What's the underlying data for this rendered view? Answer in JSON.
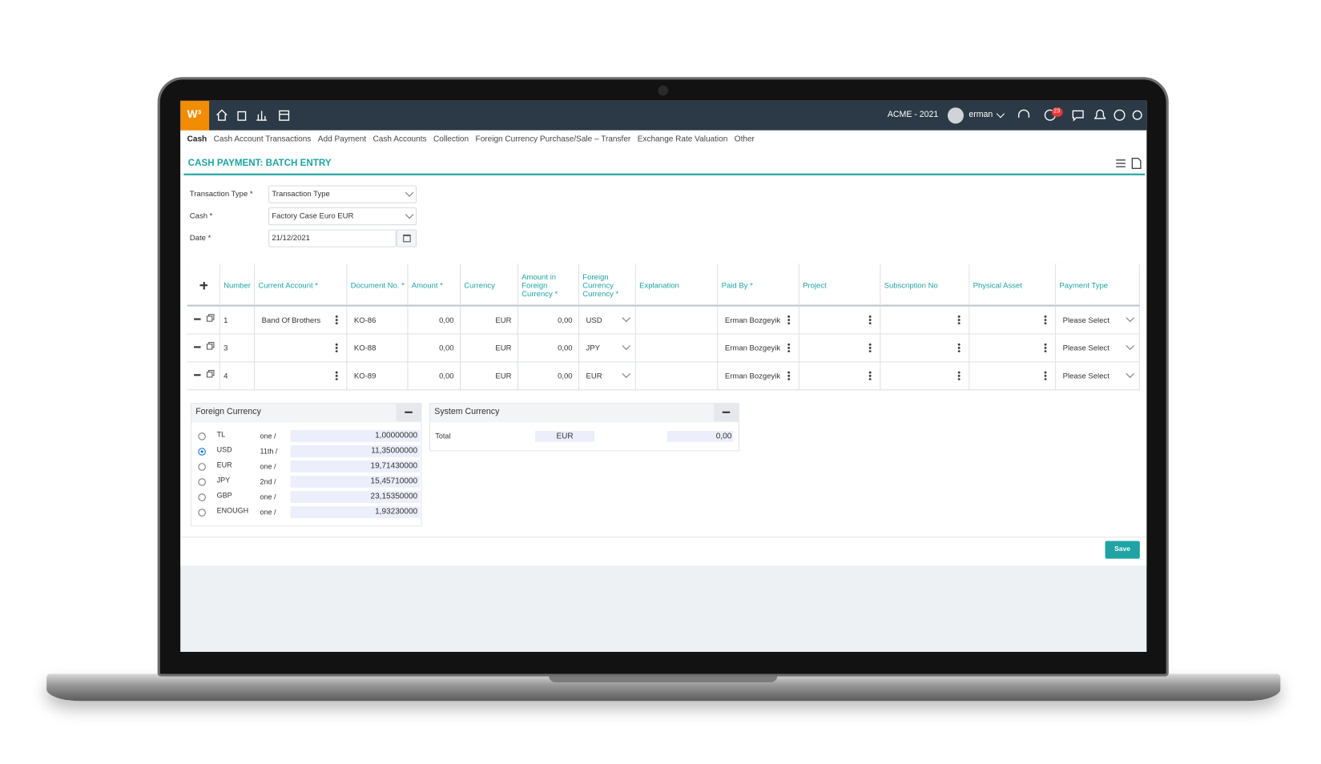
{
  "topbar": {
    "logo": "W³",
    "company": "ACME - 2021",
    "user": "erman",
    "notification_count": "23"
  },
  "breadcrumb": [
    "Cash",
    "Cash Account Transactions",
    "Add Payment",
    "Cash Accounts",
    "Collection",
    "Foreign Currency Purchase/Sale – Transfer",
    "Exchange Rate Valuation",
    "Other"
  ],
  "page_title": "CASH PAYMENT: BATCH ENTRY",
  "form": {
    "fields": [
      {
        "label": "Transaction Type *",
        "value": "Transaction Type"
      },
      {
        "label": "Cash *",
        "value": "Factory Case Euro EUR"
      },
      {
        "label": "Date *",
        "value": "21/12/2021"
      }
    ]
  },
  "table": {
    "headers": [
      "Number",
      "Current Account *",
      "Document No. *",
      "Amount *",
      "Currency",
      "Amount in Foreign Currency *",
      "Foreign Currency Currency *",
      "Explanation",
      "Paid By *",
      "Project",
      "Subscription No",
      "Physical Asset",
      "Payment Type"
    ],
    "rows": [
      {
        "number": "1",
        "current_account": "Band Of Brothers",
        "document_no": "KO-86",
        "amount": "0,00",
        "currency": "EUR",
        "amount_foreign": "0,00",
        "foreign_currency": "USD",
        "paid_by": "Erman Bozgeyik",
        "payment_type": "Please Select"
      },
      {
        "number": "3",
        "document_no": "KO-88",
        "amount": "0,00",
        "currency": "EUR",
        "amount_foreign": "0,00",
        "foreign_currency": "JPY",
        "paid_by": "Erman Bozgeyik",
        "payment_type": "Please Select"
      },
      {
        "number": "4",
        "document_no": "KO-89",
        "amount": "0,00",
        "currency": "EUR",
        "amount_foreign": "0,00",
        "foreign_currency": "EUR",
        "paid_by": "Erman Bozgeyik",
        "payment_type": "Please Select"
      }
    ]
  },
  "foreign_currency_panel": {
    "title": "Foreign Currency",
    "selected": "USD",
    "rows": [
      {
        "code": "TL",
        "unit": "one /",
        "rate": "1,00000000"
      },
      {
        "code": "USD",
        "unit": "11th /",
        "rate": "11,35000000"
      },
      {
        "code": "EUR",
        "unit": "one /",
        "rate": "19,71430000"
      },
      {
        "code": "JPY",
        "unit": "2nd /",
        "rate": "15,45710000"
      },
      {
        "code": "GBP",
        "unit": "one /",
        "rate": "23,15350000"
      },
      {
        "code": "ENOUGH",
        "unit": "one /",
        "rate": "1,93230000"
      }
    ]
  },
  "system_currency_panel": {
    "title": "System Currency",
    "total_label": "Total",
    "currency": "EUR",
    "total": "0,00"
  },
  "save_button": "Save"
}
